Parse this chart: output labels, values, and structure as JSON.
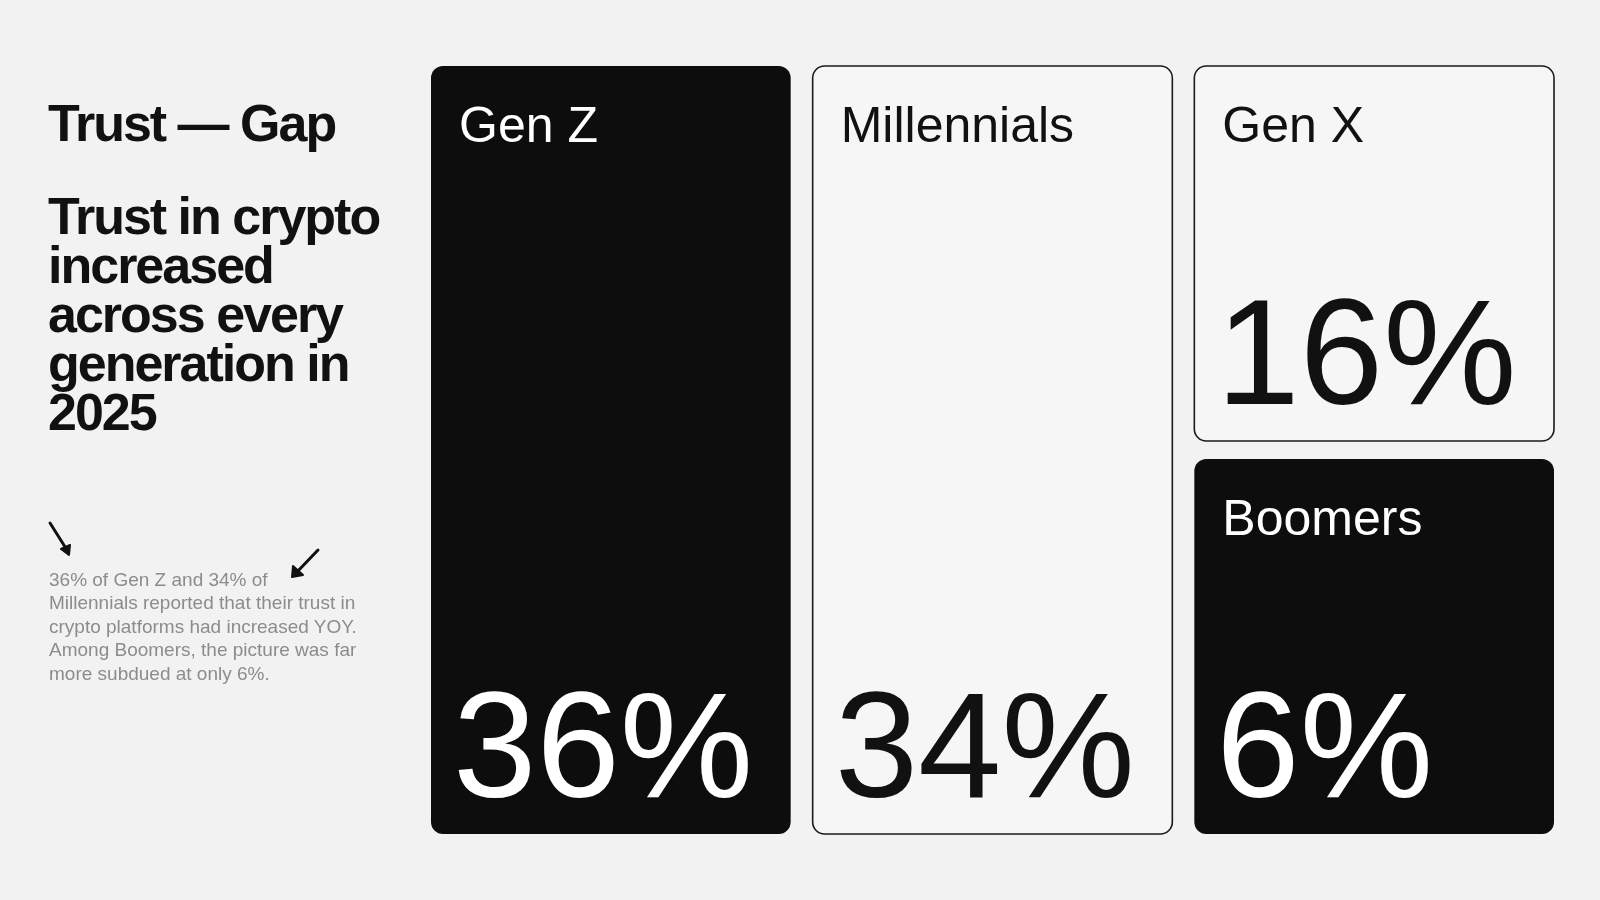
{
  "chart_data": {
    "type": "other",
    "title": "Trust — Gap",
    "subtitle": "Trust in crypto increased across every generation in 2025",
    "annotations": [
      "36% of Gen Z and 34% of Millennials reported that their trust in crypto platforms had increased YOY. Among Boomers, the picture was far more subdued at only 6%."
    ],
    "categories": [
      "Gen Z",
      "Millennials",
      "Gen X",
      "Boomers"
    ],
    "values": [
      36,
      34,
      16,
      6
    ],
    "value_labels": [
      "36%",
      "34%",
      "16%",
      "6%"
    ],
    "colors": [
      "#0d0d0d",
      "#f6f6f6",
      "#f6f6f6",
      "#0d0d0d"
    ]
  }
}
